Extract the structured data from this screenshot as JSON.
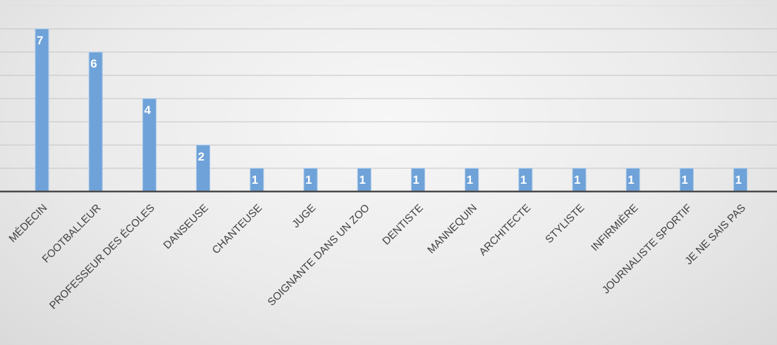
{
  "chart_data": {
    "type": "bar",
    "categories": [
      "MÉDECIN",
      "FOOTBALLEUR",
      "PROFESSEUR DES ÉCOLES",
      "DANSEUSE",
      "CHANTEUSE",
      "JUGE",
      "SOIGNANTE DANS UN ZOO",
      "DENTISTE",
      "MANNEQUIN",
      "ARCHITECTE",
      "STYLISTE",
      "INFIRMIÈRE",
      "JOURNALISTE SPORTIF",
      "JE NE SAIS PAS"
    ],
    "values": [
      7,
      6,
      4,
      2,
      1,
      1,
      1,
      1,
      1,
      1,
      1,
      1,
      1,
      1
    ],
    "data_labels": [
      "7",
      "6",
      "4",
      "2",
      "1",
      "1",
      "1",
      "1",
      "1",
      "1",
      "1",
      "1",
      "1",
      "1"
    ],
    "title": "",
    "xlabel": "",
    "ylabel": "",
    "ylim": [
      0,
      8
    ],
    "grid": true,
    "legend": "none",
    "colors": {
      "bar": "#6ea2d8",
      "bar_border": "#a9c9ea",
      "data_label": "#ffffff",
      "gridline": "#c4c4c4",
      "axis": "#4a4a4a",
      "tick_label": "#404040"
    }
  }
}
